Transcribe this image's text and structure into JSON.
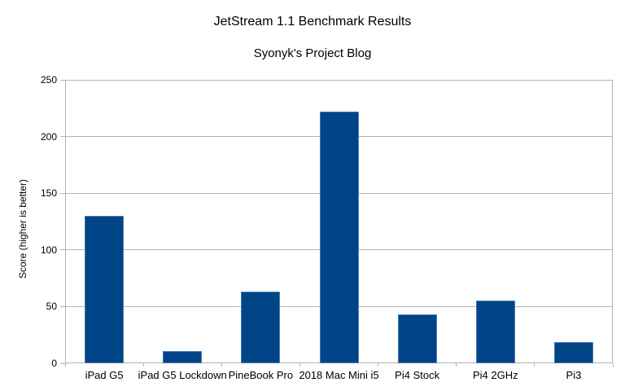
{
  "chart_data": {
    "type": "bar",
    "title": "JetStream 1.1 Benchmark Results",
    "subtitle": "Syonyk's Project Blog",
    "ylabel": "Score (higher is better)",
    "xlabel": "",
    "categories": [
      "iPad G5",
      "iPad G5 Lockdown",
      "PineBook Pro",
      "2018 Mac Mini i5",
      "Pi4 Stock",
      "Pi4 2GHz",
      "Pi3"
    ],
    "values": [
      130,
      11,
      63,
      222,
      43,
      55,
      19
    ],
    "ylim": [
      0,
      250
    ],
    "yticks": [
      0,
      50,
      100,
      150,
      200,
      250
    ],
    "grid": true,
    "legend": "none",
    "colors": {
      "bar_fill": "#004586",
      "bar_border": "#4a7aad",
      "grid": "#b3b3b3",
      "axis": "#b3b3b3",
      "text": "#000000",
      "background": "#ffffff"
    }
  }
}
